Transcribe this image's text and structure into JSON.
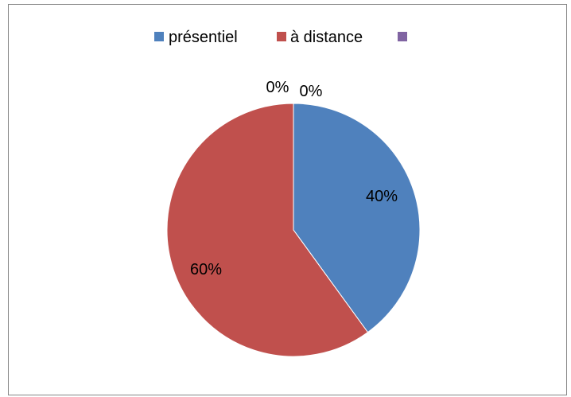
{
  "chart_data": {
    "type": "pie",
    "title": "",
    "categories": [
      "présentiel",
      "à distance",
      ""
    ],
    "values": [
      40,
      60,
      0
    ],
    "data_labels": [
      "40%",
      "60%",
      "0%"
    ],
    "extra_labels": [
      "0%"
    ],
    "colors": [
      "#4f81bd",
      "#c0504d",
      "#8064a2"
    ],
    "legend_position": "top",
    "start_angle_deg": 0,
    "direction": "clockwise"
  }
}
